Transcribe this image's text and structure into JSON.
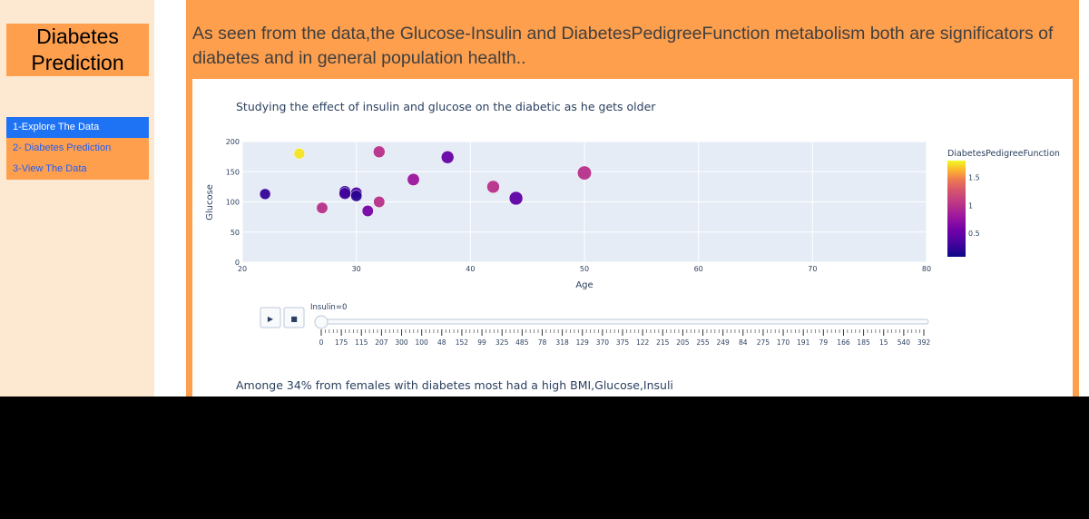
{
  "sidebar": {
    "title_line1": "Diabetes",
    "title_line2": "Prediction",
    "items": [
      {
        "label": "1-Explore The Data"
      },
      {
        "label": "2- Diabetes Prediction"
      },
      {
        "label": "3-View The Data"
      }
    ]
  },
  "main": {
    "headline": "As seen from the data,the Glucose-Insulin and DiabetesPedigreeFunction metabolism both are significators of diabetes and in general population health..",
    "caption_below": "Amonge 34% from females with diabetes most had a high BMI,Glucose,Insuli"
  },
  "colors": {
    "accent": "#fe9f4e",
    "sidebar_bg": "#fde9d1",
    "active_nav": "#1e73f5",
    "plot_bg": "#e5ecf6"
  },
  "chart_data": {
    "type": "scatter",
    "title": "Studying the effect of insulin and glucose on the diabetic as he gets older",
    "xlabel": "Age",
    "ylabel": "Glucose",
    "xlim": [
      20,
      80
    ],
    "ylim": [
      0,
      200
    ],
    "x_ticks": [
      "20",
      "30",
      "40",
      "50",
      "60",
      "70",
      "80"
    ],
    "y_ticks": [
      "0",
      "50",
      "100",
      "150",
      "200"
    ],
    "colorbar": {
      "title": "DiabetesPedigreeFunction",
      "ticks": [
        "0.5",
        "1",
        "1.5"
      ],
      "range": [
        0.08,
        1.8
      ]
    },
    "points": [
      {
        "age": 22,
        "glucose": 113,
        "dpf": 0.25,
        "size": 0.4
      },
      {
        "age": 25,
        "glucose": 180,
        "dpf": 1.75,
        "size": 0.4
      },
      {
        "age": 27,
        "glucose": 90,
        "dpf": 1.0,
        "size": 0.45
      },
      {
        "age": 29,
        "glucose": 117,
        "dpf": 0.25,
        "size": 0.5
      },
      {
        "age": 29,
        "glucose": 114,
        "dpf": 0.3,
        "size": 0.5
      },
      {
        "age": 30,
        "glucose": 115,
        "dpf": 0.35,
        "size": 0.45
      },
      {
        "age": 30,
        "glucose": 110,
        "dpf": 0.2,
        "size": 0.45
      },
      {
        "age": 31,
        "glucose": 85,
        "dpf": 0.6,
        "size": 0.45
      },
      {
        "age": 32,
        "glucose": 183,
        "dpf": 1.0,
        "size": 0.5
      },
      {
        "age": 32,
        "glucose": 100,
        "dpf": 1.0,
        "size": 0.45
      },
      {
        "age": 35,
        "glucose": 137,
        "dpf": 0.8,
        "size": 0.55
      },
      {
        "age": 38,
        "glucose": 174,
        "dpf": 0.5,
        "size": 0.6
      },
      {
        "age": 42,
        "glucose": 125,
        "dpf": 1.0,
        "size": 0.6
      },
      {
        "age": 44,
        "glucose": 106,
        "dpf": 0.45,
        "size": 0.7
      },
      {
        "age": 50,
        "glucose": 148,
        "dpf": 1.0,
        "size": 0.75
      }
    ],
    "slider": {
      "current_label": "Insulin=0",
      "steps": [
        "0",
        "175",
        "115",
        "207",
        "300",
        "100",
        "48",
        "152",
        "99",
        "325",
        "485",
        "78",
        "318",
        "129",
        "370",
        "375",
        "122",
        "215",
        "205",
        "255",
        "249",
        "84",
        "275",
        "170",
        "191",
        "79",
        "166",
        "185",
        "15",
        "540",
        "392"
      ]
    },
    "buttons": {
      "play": "▶",
      "stop": "■"
    }
  }
}
